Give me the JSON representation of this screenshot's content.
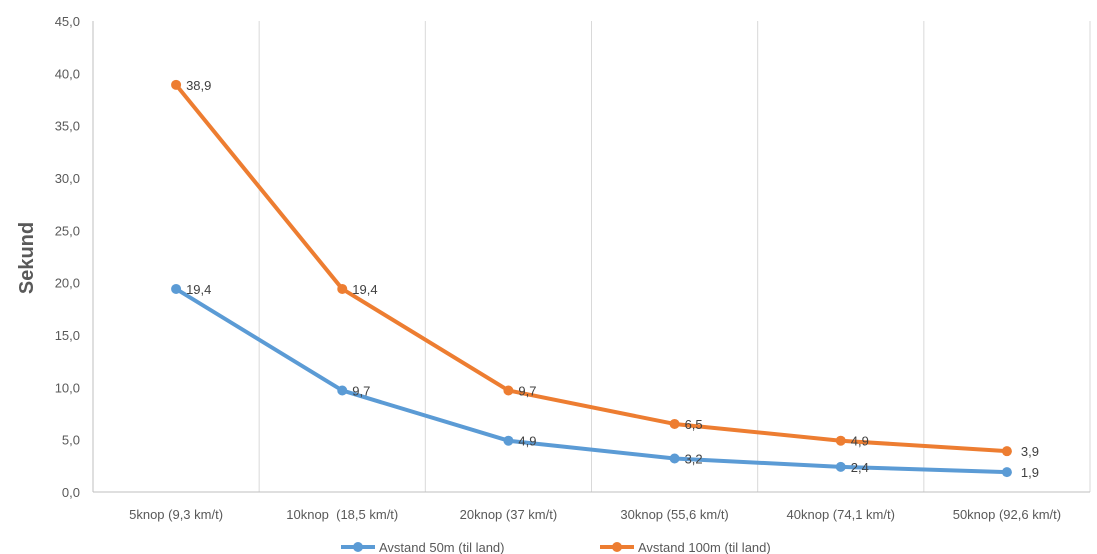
{
  "chart_data": {
    "type": "line",
    "title": "",
    "xlabel": "",
    "ylabel": "Sekund",
    "ylim": [
      0,
      45
    ],
    "y_ticks": [
      "0,0",
      "5,0",
      "10,0",
      "15,0",
      "20,0",
      "25,0",
      "30,0",
      "35,0",
      "40,0",
      "45,0"
    ],
    "categories": [
      "5knop (9,3 km/t)",
      "10knop  (18,5 km/t)",
      "20knop (37 km/t)",
      "30knop (55,6 km/t)",
      "40knop (74,1 km/t)",
      "50knop (92,6 km/t)"
    ],
    "grid": "vertical",
    "legend_position": "bottom",
    "series": [
      {
        "name": "Avstand 50m (til land)",
        "color": "#5B9BD5",
        "values": [
          19.4,
          9.7,
          4.9,
          3.2,
          2.4,
          1.9
        ],
        "labels": [
          "19,4",
          "9,7",
          "4,9",
          "3,2",
          "2,4",
          "1,9"
        ]
      },
      {
        "name": "Avstand 100m (til land)",
        "color": "#ED7D31",
        "values": [
          38.9,
          19.4,
          9.7,
          6.5,
          4.9,
          3.9
        ],
        "labels": [
          "38,9",
          "19,4",
          "9,7",
          "6,5",
          "4,9",
          "3,9"
        ]
      }
    ]
  }
}
